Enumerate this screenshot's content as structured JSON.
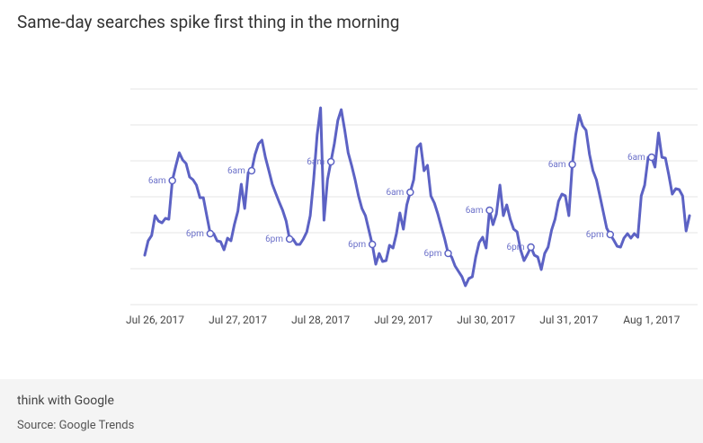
{
  "chart_data": {
    "type": "line",
    "title": "Same-day searches spike first thing in the morning",
    "xlim": [
      -3,
      155
    ],
    "xticks": [
      {
        "value": 0,
        "label": "Jul 26, 2017"
      },
      {
        "value": 24,
        "label": "Jul 27, 2017"
      },
      {
        "value": 48,
        "label": "Jul 28, 2017"
      },
      {
        "value": 72,
        "label": "Jul 29, 2017"
      },
      {
        "value": 96,
        "label": "Jul 30, 2017"
      },
      {
        "value": 120,
        "label": "Jul 31, 2017"
      },
      {
        "value": 144,
        "label": "Aug 1, 2017"
      }
    ],
    "ylim": [
      0,
      240
    ],
    "yticks": [
      0,
      40,
      80,
      120,
      160,
      200,
      240
    ],
    "grid": true,
    "series": [
      {
        "color": "#5c62c4",
        "x": [
          -3,
          -2,
          -1,
          0,
          1,
          2,
          3,
          4,
          5,
          6,
          7,
          8,
          9,
          10,
          11,
          12,
          13,
          14,
          15,
          16,
          17,
          18,
          19,
          20,
          21,
          22,
          23,
          24,
          25,
          26,
          27,
          28,
          29,
          30,
          31,
          32,
          33,
          34,
          35,
          36,
          37,
          38,
          39,
          40,
          41,
          42,
          43,
          44,
          45,
          46,
          47,
          48,
          49,
          50,
          51,
          52,
          53,
          54,
          55,
          56,
          57,
          58,
          59,
          60,
          61,
          62,
          63,
          64,
          65,
          66,
          67,
          68,
          69,
          70,
          71,
          72,
          73,
          74,
          75,
          76,
          77,
          78,
          79,
          80,
          81,
          82,
          83,
          84,
          85,
          86,
          87,
          88,
          89,
          90,
          91,
          92,
          93,
          94,
          95,
          96,
          97,
          98,
          99,
          100,
          101,
          102,
          103,
          104,
          105,
          106,
          107,
          108,
          109,
          110,
          111,
          112,
          113,
          114,
          115,
          116,
          117,
          118,
          119,
          120,
          121,
          122,
          123,
          124,
          125,
          126,
          127,
          128,
          129,
          130,
          131,
          132,
          133,
          134,
          135,
          136,
          137,
          138,
          139,
          140,
          141,
          142,
          143,
          144,
          145,
          146,
          147,
          148,
          149,
          150,
          151,
          152,
          153,
          154,
          155
        ],
        "values": [
          55,
          71,
          77,
          99,
          93,
          91,
          96,
          95,
          138,
          154,
          169,
          161,
          157,
          142,
          139,
          133,
          119,
          119,
          99,
          79,
          79,
          71,
          70,
          61,
          74,
          71,
          89,
          104,
          134,
          107,
          147,
          149,
          167,
          179,
          183,
          164,
          149,
          134,
          124,
          114,
          105,
          93,
          73,
          73,
          67,
          67,
          73,
          81,
          99,
          139,
          189,
          219,
          94,
          139,
          159,
          179,
          205,
          217,
          194,
          169,
          155,
          139,
          121,
          107,
          99,
          83,
          67,
          45,
          57,
          48,
          49,
          66,
          63,
          79,
          102,
          84,
          111,
          125,
          139,
          175,
          179,
          149,
          155,
          121,
          113,
          101,
          87,
          73,
          57,
          53,
          43,
          37,
          31,
          21,
          29,
          31,
          53,
          69,
          75,
          63,
          105,
          89,
          101,
          133,
          99,
          111,
          95,
          84,
          81,
          61,
          49,
          56,
          64,
          55,
          53,
          39,
          57,
          64,
          83,
          95,
          115,
          123,
          121,
          99,
          156,
          189,
          211,
          199,
          194,
          167,
          149,
          139,
          121,
          103,
          85,
          78,
          72,
          65,
          64,
          74,
          79,
          74,
          79,
          75,
          121,
          133,
          164,
          164,
          153,
          191,
          164,
          163,
          144,
          123,
          129,
          128,
          121,
          82,
          99
        ]
      }
    ],
    "annotations": [
      {
        "text": "6am",
        "x": 5,
        "y": 138
      },
      {
        "text": "6pm",
        "x": 16,
        "y": 79
      },
      {
        "text": "6am",
        "x": 28,
        "y": 149
      },
      {
        "text": "6pm",
        "x": 39,
        "y": 73
      },
      {
        "text": "6am",
        "x": 51,
        "y": 159
      },
      {
        "text": "6pm",
        "x": 63,
        "y": 67
      },
      {
        "text": "6am",
        "x": 74,
        "y": 125
      },
      {
        "text": "6pm",
        "x": 85,
        "y": 57
      },
      {
        "text": "6am",
        "x": 97,
        "y": 105
      },
      {
        "text": "6pm",
        "x": 109,
        "y": 64
      },
      {
        "text": "6am",
        "x": 121,
        "y": 156
      },
      {
        "text": "6pm",
        "x": 132,
        "y": 78
      },
      {
        "text": "6am",
        "x": 144,
        "y": 164
      }
    ]
  },
  "footer": {
    "brand": "think with Google",
    "source": "Source: Google Trends"
  }
}
